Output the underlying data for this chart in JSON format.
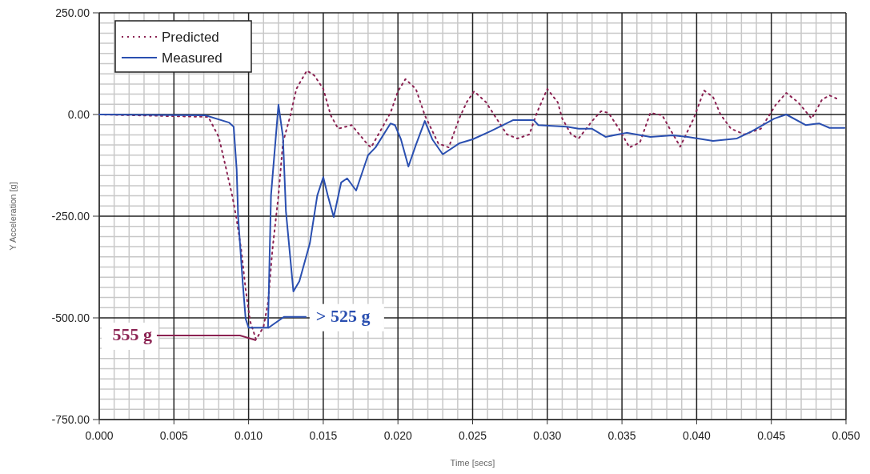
{
  "chart_data": {
    "type": "line",
    "xlabel": "Time [secs]",
    "ylabel": "Y Acceleration [g]",
    "xlim": [
      0,
      0.05
    ],
    "ylim": [
      -750,
      250
    ],
    "xticks": [
      {
        "value": 0,
        "label": "0.000"
      },
      {
        "value": 0.005,
        "label": "0.005"
      },
      {
        "value": 0.01,
        "label": "0.010"
      },
      {
        "value": 0.015,
        "label": "0.015"
      },
      {
        "value": 0.02,
        "label": "0.020"
      },
      {
        "value": 0.025,
        "label": "0.025"
      },
      {
        "value": 0.03,
        "label": "0.030"
      },
      {
        "value": 0.035,
        "label": "0.035"
      },
      {
        "value": 0.04,
        "label": "0.040"
      },
      {
        "value": 0.045,
        "label": "0.045"
      },
      {
        "value": 0.05,
        "label": "0.050"
      }
    ],
    "yticks": [
      {
        "value": 250,
        "label": "250.00"
      },
      {
        "value": 0,
        "label": "0.00"
      },
      {
        "value": -250,
        "label": "-250.00"
      },
      {
        "value": -500,
        "label": "-500.00"
      },
      {
        "value": -750,
        "label": "-750.00"
      }
    ],
    "grid": true,
    "legend": "top left",
    "marker": "none",
    "series": [
      {
        "name": "Predicted",
        "color": "#8b2252",
        "line_style": "dotted",
        "x": [
          0,
          0.0073,
          0.008,
          0.0085,
          0.0089,
          0.0092,
          0.0095,
          0.0098,
          0.0101,
          0.0105,
          0.011,
          0.0113,
          0.0116,
          0.012,
          0.0123,
          0.0128,
          0.0132,
          0.0139,
          0.0144,
          0.015,
          0.0155,
          0.016,
          0.0169,
          0.018,
          0.0182,
          0.0195,
          0.02,
          0.0205,
          0.0212,
          0.0218,
          0.0227,
          0.0234,
          0.0241,
          0.0246,
          0.0251,
          0.0259,
          0.0266,
          0.0273,
          0.028,
          0.0288,
          0.0293,
          0.03,
          0.0307,
          0.031,
          0.0316,
          0.0321,
          0.033,
          0.0336,
          0.0341,
          0.0348,
          0.0355,
          0.0362,
          0.0369,
          0.0377,
          0.0382,
          0.0389,
          0.0398,
          0.0405,
          0.0411,
          0.0416,
          0.0423,
          0.0432,
          0.0443,
          0.0453,
          0.046,
          0.0468,
          0.0477,
          0.0484,
          0.0489,
          0.0495
        ],
        "values": [
          0,
          -6,
          -55,
          -134,
          -199,
          -258,
          -331,
          -429,
          -508,
          -553,
          -522,
          -463,
          -331,
          -199,
          -69,
          -2,
          63,
          108,
          96,
          63,
          -2,
          -35,
          -26,
          -75,
          -81,
          4,
          57,
          87,
          63,
          -2,
          -71,
          -81,
          -10,
          30,
          57,
          30,
          -10,
          -49,
          -59,
          -49,
          4,
          63,
          30,
          -10,
          -49,
          -59,
          -16,
          8,
          4,
          -35,
          -81,
          -69,
          4,
          -2,
          -35,
          -79,
          -10,
          59,
          43,
          0,
          -35,
          -49,
          -35,
          24,
          53,
          30,
          -10,
          37,
          47,
          37
        ]
      },
      {
        "name": "Measured",
        "color": "#2a4fb0",
        "line_style": "solid",
        "x": [
          0,
          0.0071,
          0.0087,
          0.009,
          0.0092,
          0.0093,
          0.0096,
          0.0098,
          0.01,
          0.0113,
          0.0115,
          0.012,
          0.0123,
          0.0125,
          0.013,
          0.0134,
          0.0141,
          0.0146,
          0.015,
          0.0153,
          0.0157,
          0.0162,
          0.0166,
          0.0172,
          0.018,
          0.0185,
          0.0195,
          0.0198,
          0.0202,
          0.0207,
          0.0212,
          0.0218,
          0.0223,
          0.023,
          0.0241,
          0.025,
          0.0262,
          0.0277,
          0.0291,
          0.0294,
          0.0313,
          0.0321,
          0.033,
          0.0339,
          0.0353,
          0.0369,
          0.0384,
          0.0394,
          0.0411,
          0.0427,
          0.0437,
          0.0452,
          0.046,
          0.0473,
          0.0482,
          0.0489,
          0.0499
        ],
        "values": [
          0,
          -2,
          -20,
          -30,
          -134,
          -252,
          -410,
          -502,
          -524,
          -524,
          -199,
          24,
          -55,
          -238,
          -435,
          -410,
          -317,
          -199,
          -154,
          -199,
          -252,
          -167,
          -157,
          -187,
          -100,
          -81,
          -22,
          -26,
          -61,
          -128,
          -75,
          -16,
          -61,
          -98,
          -71,
          -61,
          -41,
          -14,
          -14,
          -26,
          -30,
          -35,
          -35,
          -55,
          -45,
          -55,
          -51,
          -55,
          -65,
          -59,
          -41,
          -10,
          0,
          -26,
          -22,
          -33,
          -33
        ]
      }
    ],
    "annotations": [
      {
        "text": "555 g",
        "x": 0.0105,
        "y": -555
      },
      {
        "text": "> 525 g",
        "x": 0.0113,
        "y": -525
      }
    ]
  }
}
